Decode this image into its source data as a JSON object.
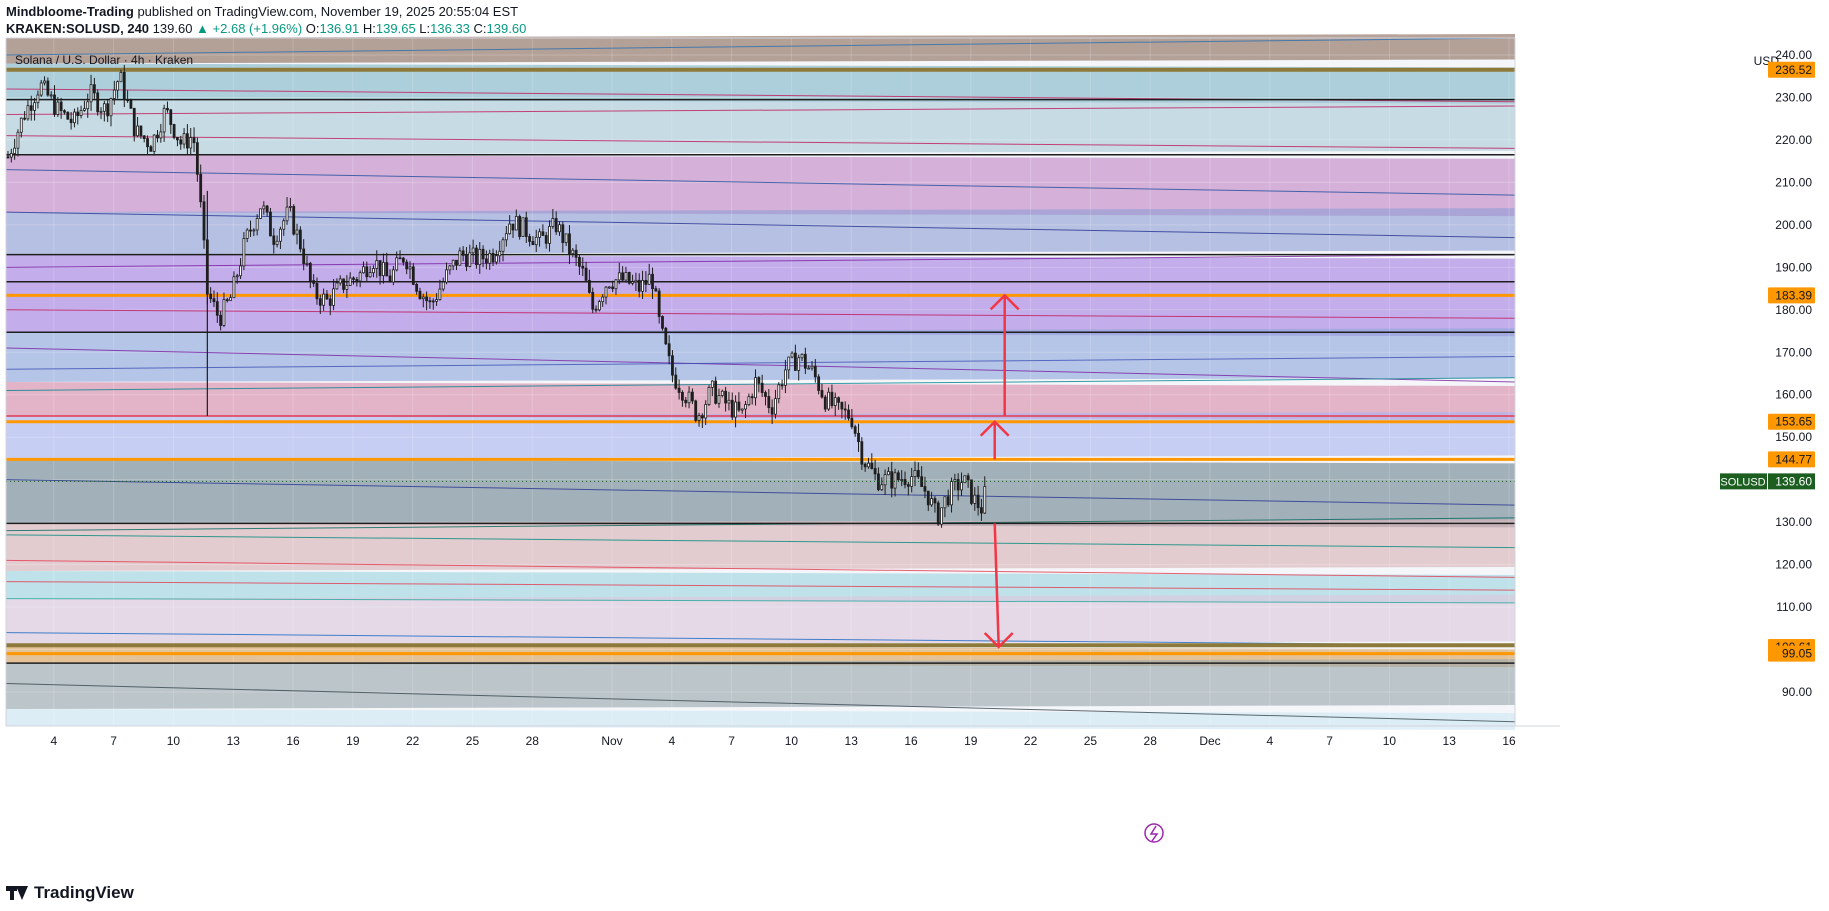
{
  "header": {
    "publisher": "Mindbloome-Trading",
    "published_text": "published on TradingView.com, November 19, 2025 20:55:04 EST",
    "symbol": "KRAKEN:SOLUSD, 240",
    "last": "139.60",
    "change": "▲ +2.68 (+1.96%)",
    "o_label": "O:",
    "o": "136.91",
    "h_label": "H:",
    "h": "139.65",
    "l_label": "L:",
    "l": "136.33",
    "c_label": "C:",
    "c": "139.60"
  },
  "footer": {
    "brand": "TradingView"
  },
  "chart_data": {
    "type": "candlestick",
    "title": "Solana / U.S. Dollar · 4h · Kraken",
    "currency": "USD",
    "ylim": [
      82,
      244
    ],
    "y_ticks": [
      90,
      100,
      110,
      120,
      130,
      140,
      150,
      160,
      170,
      180,
      190,
      200,
      210,
      220,
      230,
      240
    ],
    "y_tick_labels": [
      "90.00",
      "100.00",
      "110.00",
      "120.00",
      "130.00",
      "140.00",
      "150.00",
      "160.00",
      "170.00",
      "180.00",
      "190.00",
      "200.00",
      "210.00",
      "220.00",
      "230.00",
      "240.00"
    ],
    "x_ticks": [
      {
        "day": 4,
        "label": "4"
      },
      {
        "day": 7,
        "label": "7"
      },
      {
        "day": 10,
        "label": "10"
      },
      {
        "day": 13,
        "label": "13"
      },
      {
        "day": 16,
        "label": "16"
      },
      {
        "day": 19,
        "label": "19"
      },
      {
        "day": 22,
        "label": "22"
      },
      {
        "day": 25,
        "label": "25"
      },
      {
        "day": 28,
        "label": "28"
      },
      {
        "day": 32,
        "label": "Nov"
      },
      {
        "day": 35,
        "label": "4"
      },
      {
        "day": 38,
        "label": "7"
      },
      {
        "day": 41,
        "label": "10"
      },
      {
        "day": 44,
        "label": "13"
      },
      {
        "day": 47,
        "label": "16"
      },
      {
        "day": 50,
        "label": "19"
      },
      {
        "day": 53,
        "label": "22"
      },
      {
        "day": 56,
        "label": "25"
      },
      {
        "day": 59,
        "label": "28"
      },
      {
        "day": 62,
        "label": "Dec"
      },
      {
        "day": 65,
        "label": "4"
      },
      {
        "day": 68,
        "label": "7"
      },
      {
        "day": 71,
        "label": "10"
      },
      {
        "day": 74,
        "label": "13"
      },
      {
        "day": 77,
        "label": "16"
      }
    ],
    "xlim": [
      1.6,
      77.3
    ],
    "x_axis_note": "days since Oct 1, 2025 (Nov 1 = 32, Dec 1 = 62)",
    "price_path": [
      [
        1.7,
        216
      ],
      [
        2.5,
        226
      ],
      [
        3.3,
        233
      ],
      [
        4.2,
        227
      ],
      [
        5.0,
        224
      ],
      [
        5.8,
        231
      ],
      [
        6.6,
        227
      ],
      [
        7.3,
        235
      ],
      [
        8.1,
        222
      ],
      [
        8.9,
        219
      ],
      [
        9.6,
        227
      ],
      [
        10.4,
        219
      ],
      [
        11.0,
        221
      ],
      [
        11.3,
        208
      ],
      [
        11.7,
        184
      ],
      [
        12.3,
        178
      ],
      [
        12.9,
        183
      ],
      [
        13.6,
        196
      ],
      [
        14.4,
        205
      ],
      [
        15.0,
        197
      ],
      [
        15.8,
        203
      ],
      [
        16.4,
        195
      ],
      [
        17.0,
        184
      ],
      [
        17.7,
        182
      ],
      [
        18.5,
        186
      ],
      [
        19.3,
        188
      ],
      [
        20.0,
        192
      ],
      [
        20.8,
        187
      ],
      [
        21.6,
        193
      ],
      [
        22.3,
        185
      ],
      [
        22.9,
        181
      ],
      [
        23.7,
        188
      ],
      [
        24.4,
        193
      ],
      [
        25.2,
        192
      ],
      [
        26.0,
        193
      ],
      [
        26.9,
        201
      ],
      [
        27.6,
        199
      ],
      [
        28.4,
        196
      ],
      [
        29.2,
        200
      ],
      [
        30.0,
        193
      ],
      [
        30.6,
        188
      ],
      [
        31.0,
        180
      ],
      [
        31.8,
        187
      ],
      [
        32.6,
        187
      ],
      [
        33.4,
        185
      ],
      [
        34.0,
        188
      ],
      [
        34.4,
        176
      ],
      [
        35.0,
        165
      ],
      [
        35.7,
        160
      ],
      [
        36.3,
        155
      ],
      [
        37.0,
        161
      ],
      [
        37.7,
        158
      ],
      [
        38.5,
        155
      ],
      [
        39.2,
        163
      ],
      [
        40.0,
        157
      ],
      [
        40.7,
        166
      ],
      [
        41.4,
        169
      ],
      [
        42.1,
        165
      ],
      [
        42.7,
        159
      ],
      [
        43.4,
        156
      ],
      [
        44.0,
        155
      ],
      [
        44.6,
        145
      ],
      [
        45.3,
        140
      ],
      [
        46.2,
        140
      ],
      [
        47.0,
        141
      ],
      [
        47.8,
        137
      ],
      [
        48.3,
        131
      ],
      [
        48.8,
        136
      ],
      [
        49.6,
        140
      ],
      [
        50.2,
        135
      ],
      [
        50.6,
        133
      ],
      [
        50.8,
        139.6
      ]
    ],
    "last_price": {
      "label": "SOLUSD",
      "value": "139.60",
      "price": 139.6
    },
    "price_labels": [
      {
        "price": 236.52,
        "text": "236.52",
        "color": "#ff9800"
      },
      {
        "price": 183.39,
        "text": "183.39",
        "color": "#ff9800"
      },
      {
        "price": 153.65,
        "text": "153.65",
        "color": "#ff9800"
      },
      {
        "price": 144.77,
        "text": "144.77",
        "color": "#ff9800"
      },
      {
        "price": 100.61,
        "text": "100.61",
        "color": "#ff9800"
      },
      {
        "price": 99.05,
        "text": "99.05",
        "color": "#ff9800"
      }
    ],
    "horizontal_lines": [
      {
        "price": 236.52,
        "color": "#8d7a3a"
      },
      {
        "price": 229.5,
        "color": "#1e1e1e"
      },
      {
        "price": 216.5,
        "color": "#1e1e1e"
      },
      {
        "price": 193.0,
        "color": "#1e1e1e"
      },
      {
        "price": 186.6,
        "color": "#1e1e1e"
      },
      {
        "price": 183.39,
        "color": "#ff9800"
      },
      {
        "price": 174.7,
        "color": "#1e1e1e"
      },
      {
        "price": 155.0,
        "color": "#e53950"
      },
      {
        "price": 153.65,
        "color": "#ff9800"
      },
      {
        "price": 144.77,
        "color": "#ff9800"
      },
      {
        "price": 129.7,
        "color": "#1e1e1e"
      },
      {
        "price": 101.0,
        "color": "#8d7a3a"
      },
      {
        "price": 99.05,
        "color": "#ff9800"
      },
      {
        "price": 96.8,
        "color": "#1e1e1e"
      }
    ],
    "bands": [
      {
        "p1": 244,
        "p2": 238,
        "color": "#8b6b5a"
      },
      {
        "p1": 238,
        "p2": 229.5,
        "color": "#7fb6c8"
      },
      {
        "p1": 229.5,
        "p2": 216.5,
        "color": "#a9c9d6"
      },
      {
        "p1": 216.5,
        "p2": 203,
        "color": "#c286c6"
      },
      {
        "p1": 203,
        "p2": 193,
        "color": "#8f9ed3"
      },
      {
        "p1": 193,
        "p2": 174.7,
        "color": "#a47fe0"
      },
      {
        "p1": 174.7,
        "p2": 163,
        "color": "#8ea7dc"
      },
      {
        "p1": 163,
        "p2": 155,
        "color": "#d98aa8"
      },
      {
        "p1": 155,
        "p2": 144.77,
        "color": "#a9b4f0"
      },
      {
        "p1": 144.77,
        "p2": 129.7,
        "color": "#6f8592"
      },
      {
        "p1": 129.7,
        "p2": 118.5,
        "color": "#d8b2b7"
      },
      {
        "p1": 118.5,
        "p2": 112,
        "color": "#9ed5e0"
      },
      {
        "p1": 112,
        "p2": 101,
        "color": "#dcc6dd"
      },
      {
        "p1": 101,
        "p2": 96.8,
        "color": "#d9a25a"
      },
      {
        "p1": 96.8,
        "p2": 86,
        "color": "#9aa6ad"
      },
      {
        "p1": 86,
        "p2": 82,
        "color": "#cfe6f3"
      }
    ],
    "projection_arrows": [
      {
        "from": [
          51.7,
          155
        ],
        "to": [
          51.7,
          183.39
        ],
        "color": "#f23645"
      },
      {
        "from": [
          51.2,
          144.77
        ],
        "to": [
          51.2,
          153.65
        ],
        "color": "#f23645"
      },
      {
        "from": [
          51.2,
          129.7
        ],
        "to": [
          51.4,
          100.61
        ],
        "color": "#f23645"
      }
    ],
    "colors": {
      "up": "#089981",
      "down": "#f23645",
      "candle": "#1e1e1e",
      "accent": "#ff9800",
      "last_price": "#1b5e20"
    },
    "grid": true
  }
}
